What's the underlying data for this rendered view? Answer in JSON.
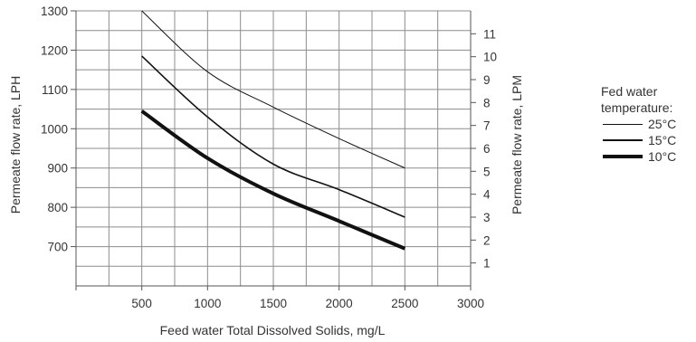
{
  "chart_data": {
    "type": "line",
    "title": "",
    "xlabel": "Feed water Total Dissolved Solids, mg/L",
    "ylabel_left": "Permeate flow rate, LPH",
    "ylabel_right": "Permeate flow rate, LPM",
    "xlim": [
      0,
      3000
    ],
    "x_ticks": [
      "500",
      "1000",
      "1500",
      "2000",
      "2500",
      "3000"
    ],
    "ylim_left": [
      600,
      1300
    ],
    "y_ticks_left": [
      "700",
      "800",
      "900",
      "1000",
      "1100",
      "1200",
      "1300"
    ],
    "ylim_right": [
      0,
      12
    ],
    "y_ticks_right": [
      "1",
      "2",
      "3",
      "4",
      "5",
      "6",
      "7",
      "8",
      "9",
      "10",
      "11"
    ],
    "grid": true,
    "legend_title": "Fed water temperature:",
    "legend_position": "right",
    "series": [
      {
        "name": "25°C",
        "line_weight": "thin",
        "x": [
          500,
          1000,
          1500,
          2000,
          2500
        ],
        "y": [
          1300,
          1145,
          1055,
          975,
          900
        ]
      },
      {
        "name": "15°C",
        "line_weight": "medium",
        "x": [
          500,
          1000,
          1500,
          2000,
          2500
        ],
        "y": [
          1185,
          1030,
          910,
          845,
          775
        ]
      },
      {
        "name": "10°C",
        "line_weight": "thick",
        "x": [
          500,
          1000,
          1500,
          2000,
          2500
        ],
        "y": [
          1045,
          925,
          835,
          765,
          695
        ]
      }
    ]
  },
  "legend": {
    "title_line1": "Fed water",
    "title_line2": "temperature:",
    "items": [
      {
        "label": "25°C",
        "weight": "thin"
      },
      {
        "label": "15°C",
        "weight": "medium"
      },
      {
        "label": "10°C",
        "weight": "thick"
      }
    ]
  },
  "colors": {
    "line": "#111111",
    "grid": "#8c8c8c",
    "axis": "#555555",
    "text": "#333333"
  }
}
